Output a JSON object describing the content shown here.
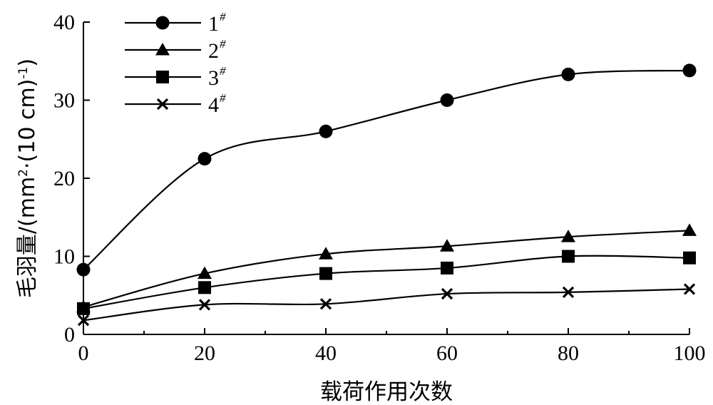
{
  "chart_data": {
    "type": "line",
    "xlabel": "载荷作用次数",
    "ylabel": "毛羽量/(mm²·(10 cm)⁻¹)",
    "ylabel_main": "毛羽量/(mm",
    "ylabel_sup1": "2",
    "ylabel_mid": "·(10 cm)",
    "ylabel_sup2": "-1",
    "ylabel_end": ")",
    "xlim": [
      0,
      100
    ],
    "ylim": [
      0,
      40
    ],
    "xticks": [
      0,
      20,
      40,
      60,
      80,
      100
    ],
    "yticks": [
      0,
      10,
      20,
      30,
      40
    ],
    "x": [
      0,
      20,
      40,
      60,
      80,
      100
    ],
    "grid": false,
    "legend_position": "top-left",
    "series": [
      {
        "name": "1",
        "name_sup": "#",
        "marker": "circle",
        "values": [
          8.3,
          22.5,
          26.0,
          30.0,
          33.3,
          33.8
        ]
      },
      {
        "name": "2",
        "name_sup": "#",
        "marker": "triangle",
        "values": [
          3.5,
          7.8,
          10.3,
          11.3,
          12.5,
          13.3
        ]
      },
      {
        "name": "3",
        "name_sup": "#",
        "marker": "square",
        "values": [
          3.3,
          6.0,
          7.8,
          8.5,
          10.0,
          9.8
        ]
      },
      {
        "name": "4",
        "name_sup": "#",
        "marker": "x",
        "values": [
          1.8,
          3.8,
          3.9,
          5.2,
          5.4,
          5.8
        ]
      }
    ]
  }
}
